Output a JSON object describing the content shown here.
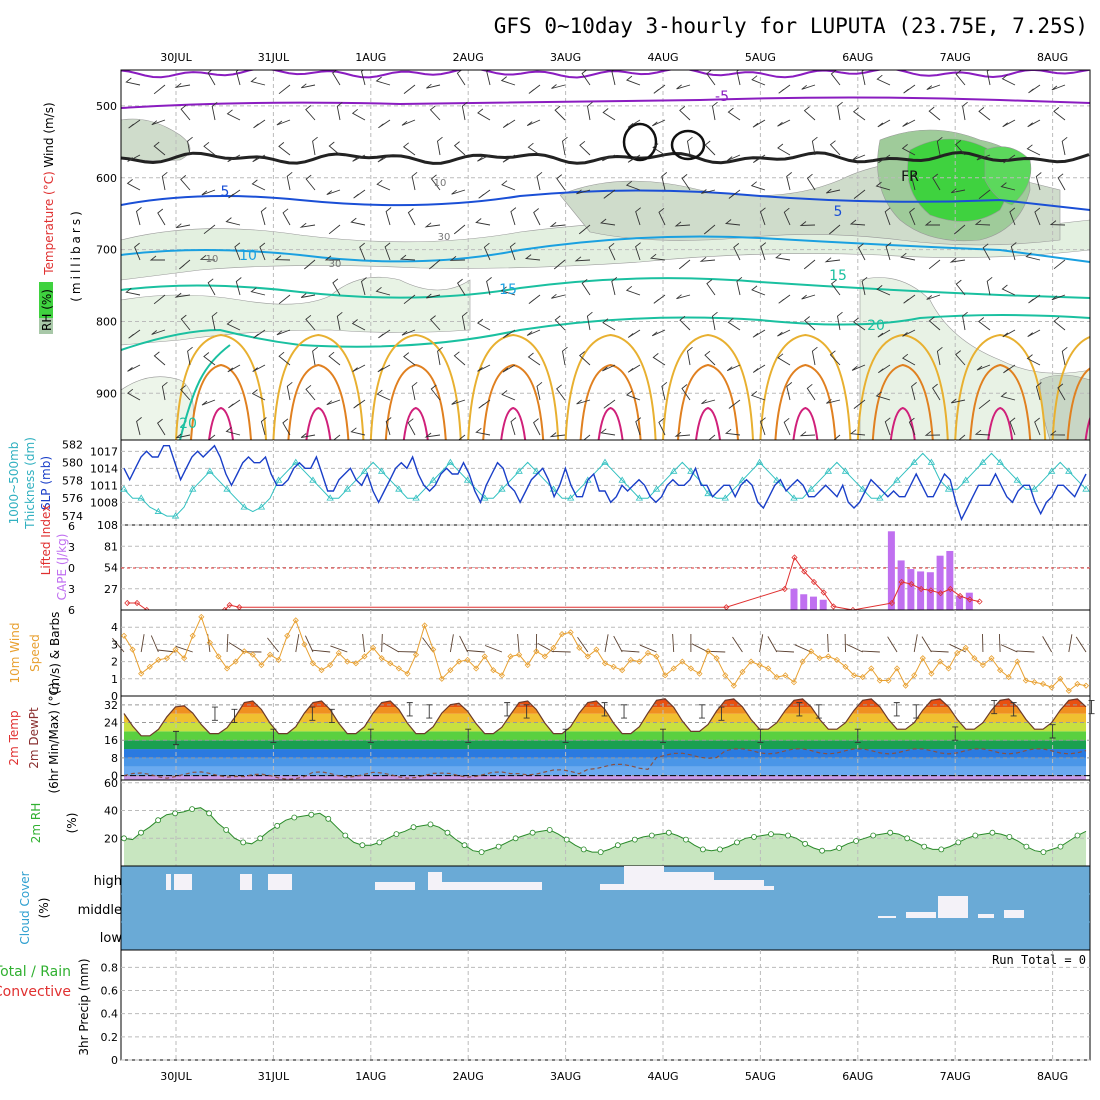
{
  "header": {
    "title": "GFS 0~10day 3-hourly for LUPUTA (23.75E, 7.25S)"
  },
  "dates": [
    "30JUL",
    "31JUL",
    "1AUG",
    "2AUG",
    "3AUG",
    "4AUG",
    "5AUG",
    "6AUG",
    "7AUG",
    "8AUG"
  ],
  "colors": {
    "rh_green": "#3fd23f",
    "temp_purple": "#8a1cc0",
    "temp_blue": "#1a4fd6",
    "temp_cyan": "#1aa0e0",
    "temp_teal": "#1ac0a0",
    "slp_line": "#1a3fc8",
    "thickness_line": "#30c0c0",
    "cape_bar": "#c070f0",
    "lifted_index": "#e03030",
    "wind10m": "#e8a030",
    "cloud_blue": "#6aaad6",
    "rh2m_green": "#40b040"
  },
  "panels": {
    "upper_air": {
      "labels": {
        "wind": "Wind (m/s)",
        "temperature": "Temperature (°C)",
        "rh": "RH (%)",
        "pressure": "(millibars)"
      },
      "contour_labels": [
        "-5",
        "5",
        "5",
        "10",
        "15",
        "15",
        "20",
        "20",
        "FR",
        "10",
        "10",
        "30",
        "30"
      ]
    },
    "slp": {
      "label_a": "1000~500mb",
      "label_b": "Thickness (dm)",
      "label_c": "SLP (mb)"
    },
    "cape": {
      "label_a": "Lifted Index",
      "label_b": "CAPE (J/kg)"
    },
    "wind10": {
      "label_a": "10m Wind",
      "label_b": "Speed",
      "label_c": "(m/s) & Barbs"
    },
    "temp2m": {
      "label_a": "2m Temp",
      "label_b": "2m DewPt",
      "label_c": "(6hr Min/Max) (°C)"
    },
    "rh2m": {
      "label_a": "2m RH",
      "label_b": "(%)"
    },
    "cloud": {
      "label_a": "Cloud Cover",
      "label_b": "(%)",
      "levels": [
        "high",
        "middle",
        "low"
      ]
    },
    "precip": {
      "label_a": "Total / Rain",
      "label_b": "Convective",
      "label_c": "3hr Precip (mm)",
      "run_total": "Run Total = 0"
    }
  },
  "chart_data": [
    {
      "type": "heatmap",
      "name": "upper-air cross section",
      "ylim": [
        965,
        450
      ],
      "yticks": [
        500,
        600,
        700,
        800,
        900
      ],
      "isotherms_c": [
        -5,
        0,
        5,
        10,
        15,
        20,
        25,
        30
      ],
      "rh_shading_pct": [
        30,
        50,
        70,
        90
      ]
    },
    {
      "type": "line",
      "name": "SLP and thickness",
      "ylim_slp": [
        1004,
        1019
      ],
      "yticks_slp": [
        1008,
        1011,
        1014,
        1017
      ],
      "ylim_thk": [
        573,
        582.5
      ],
      "yticks_thk": [
        574,
        576,
        578,
        580,
        582
      ],
      "slp": [
        1014,
        1012,
        1014,
        1016,
        1017,
        1016,
        1016,
        1018,
        1018,
        1015,
        1012,
        1014,
        1016,
        1017,
        1016,
        1017,
        1018,
        1016,
        1013,
        1011,
        1013,
        1015,
        1016,
        1015,
        1015,
        1016,
        1013,
        1011,
        1011,
        1012,
        1014,
        1015,
        1014,
        1014,
        1016,
        1013,
        1010,
        1010,
        1012,
        1013,
        1014,
        1012,
        1011,
        1013,
        1010,
        1008,
        1010,
        1012,
        1014,
        1015,
        1014,
        1016,
        1013,
        1011,
        1010,
        1011,
        1013,
        1014,
        1013,
        1013,
        1015,
        1013,
        1010,
        1008,
        1011,
        1013,
        1015,
        1014,
        1011,
        1010,
        1008,
        1010,
        1012,
        1013,
        1014,
        1012,
        1009,
        1011,
        1014,
        1011,
        1009,
        1009,
        1012,
        1013,
        1010,
        1010,
        1008,
        1009,
        1011,
        1010,
        1011,
        1012,
        1011,
        1009,
        1008,
        1009,
        1011,
        1012,
        1011,
        1011,
        1012,
        1014,
        1011,
        1011,
        1009,
        1010,
        1011,
        1011,
        1009,
        1011,
        1012,
        1011,
        1008,
        1007,
        1009,
        1011,
        1012,
        1010,
        1011,
        1012,
        1011,
        1009,
        1009,
        1010,
        1011,
        1010,
        1009,
        1011,
        1008,
        1007,
        1008,
        1010,
        1012,
        1011,
        1010,
        1009,
        1010,
        1009,
        1009,
        1011,
        1013,
        1011,
        1009,
        1009,
        1011,
        1013,
        1012,
        1008,
        1005,
        1007,
        1009,
        1011,
        1011,
        1011,
        1013,
        1011,
        1009,
        1008,
        1010,
        1011,
        1011,
        1008,
        1006,
        1008,
        1009,
        1011,
        1011,
        1010,
        1009,
        1011,
        1013
      ],
      "thickness": [
        577,
        576,
        576,
        575,
        574.5,
        574,
        574,
        575,
        577,
        578,
        579,
        578,
        577,
        576,
        575,
        574.5,
        575,
        576,
        578,
        579,
        580,
        579,
        578,
        577,
        576,
        576,
        577,
        578,
        579,
        580,
        579,
        578,
        577,
        576,
        576,
        577,
        578,
        579,
        580,
        579,
        578,
        577,
        576,
        576,
        577,
        578,
        579,
        580,
        579,
        578,
        577,
        576,
        576,
        577,
        578,
        579,
        580,
        579,
        578,
        577,
        576,
        576,
        577,
        578,
        579,
        580,
        579,
        578,
        576.5,
        576,
        576,
        577,
        578,
        579,
        580,
        579,
        578,
        577,
        576,
        576,
        577,
        578,
        579,
        580,
        579,
        578,
        577,
        576,
        576,
        577,
        578,
        579,
        580,
        581,
        580,
        578,
        577,
        577,
        578,
        579,
        580,
        581,
        580,
        579,
        578,
        577,
        577,
        578,
        579,
        580,
        579,
        578,
        577
      ]
    },
    {
      "type": "bar",
      "name": "CAPE and lifted index",
      "ylim_cape": [
        0,
        108
      ],
      "yticks_cape": [
        27,
        54,
        81,
        108
      ],
      "yticks_li": [
        -6,
        -3,
        0,
        3,
        6
      ],
      "cape_bars": [
        {
          "t": 6.35,
          "v": 27
        },
        {
          "t": 6.45,
          "v": 20
        },
        {
          "t": 6.55,
          "v": 17
        },
        {
          "t": 6.65,
          "v": 13
        },
        {
          "t": 7.35,
          "v": 100
        },
        {
          "t": 7.45,
          "v": 63
        },
        {
          "t": 7.55,
          "v": 52
        },
        {
          "t": 7.65,
          "v": 49
        },
        {
          "t": 7.75,
          "v": 48
        },
        {
          "t": 7.85,
          "v": 69
        },
        {
          "t": 7.95,
          "v": 75
        },
        {
          "t": 8.05,
          "v": 18
        },
        {
          "t": 8.15,
          "v": 22
        }
      ],
      "lifted_index": [
        {
          "t": -0.5,
          "v": 5
        },
        {
          "t": -0.4,
          "v": 5
        },
        {
          "t": -0.3,
          "v": 6
        },
        {
          "t": 0.5,
          "v": 6
        },
        {
          "t": 0.55,
          "v": 5.3
        },
        {
          "t": 0.65,
          "v": 5.6
        },
        {
          "t": 5.65,
          "v": 5.6
        },
        {
          "t": 6.25,
          "v": 3
        },
        {
          "t": 6.35,
          "v": -1.5
        },
        {
          "t": 6.45,
          "v": 0.5
        },
        {
          "t": 6.55,
          "v": 2
        },
        {
          "t": 6.65,
          "v": 3.5
        },
        {
          "t": 6.75,
          "v": 5.5
        },
        {
          "t": 6.95,
          "v": 6
        },
        {
          "t": 7.35,
          "v": 5
        },
        {
          "t": 7.45,
          "v": 2
        },
        {
          "t": 7.55,
          "v": 2.3
        },
        {
          "t": 7.65,
          "v": 3
        },
        {
          "t": 7.75,
          "v": 3.2
        },
        {
          "t": 7.85,
          "v": 3.6
        },
        {
          "t": 7.95,
          "v": 3
        },
        {
          "t": 8.05,
          "v": 4
        },
        {
          "t": 8.15,
          "v": 4.5
        },
        {
          "t": 8.25,
          "v": 4.8
        }
      ]
    },
    {
      "type": "line",
      "name": "10m wind speed",
      "ylim": [
        0,
        5
      ],
      "yticks": [
        0,
        1,
        2,
        3,
        4
      ],
      "speed": [
        3.5,
        2.7,
        1.3,
        1.7,
        2.1,
        2.2,
        2.7,
        2.2,
        3.5,
        4.6,
        3.1,
        2.3,
        1.6,
        2.0,
        2.6,
        2.4,
        1.8,
        2.4,
        2.1,
        3.5,
        4.4,
        3.0,
        1.9,
        1.5,
        1.8,
        2.5,
        2.0,
        1.9,
        2.3,
        2.8,
        2.2,
        1.9,
        1.6,
        1.3,
        2.4,
        4.1,
        2.7,
        1.0,
        1.5,
        2.0,
        2.1,
        1.6,
        2.3,
        1.5,
        1.2,
        2.3,
        2.4,
        1.8,
        2.6,
        2.3,
        2.8,
        3.6,
        3.7,
        2.8,
        2.3,
        2.7,
        1.9,
        1.7,
        1.5,
        2.1,
        2.0,
        2.5,
        2.3,
        1.2,
        1.6,
        2.0,
        1.6,
        1.3,
        2.6,
        2.2,
        1.2,
        0.6,
        1.4,
        2.0,
        1.8,
        1.6,
        1.1,
        1.2,
        0.8,
        2.0,
        2.6,
        2.2,
        2.3,
        2.1,
        1.7,
        1.2,
        1.1,
        1.6,
        0.9,
        0.9,
        1.6,
        0.6,
        1.2,
        2.2,
        1.3,
        2.0,
        1.6,
        2.5,
        2.8,
        2.2,
        1.8,
        2.2,
        1.5,
        1.1,
        2.0,
        0.9,
        0.8,
        0.7,
        0.5,
        1.0,
        0.3,
        0.7,
        0.6
      ]
    },
    {
      "type": "area",
      "name": "2m temperature and dewpoint",
      "ylim": [
        -2,
        36
      ],
      "yticks": [
        0,
        8,
        16,
        24,
        32
      ],
      "days": [
        0,
        1,
        2,
        3,
        4,
        5,
        6,
        7,
        8,
        9
      ],
      "tmax": [
        31,
        31,
        33,
        33,
        33,
        32,
        33,
        33,
        34,
        34
      ],
      "tmin": [
        18,
        19,
        19,
        19,
        19,
        19,
        19,
        19,
        20,
        21
      ],
      "dewpoint": [
        0,
        0.5,
        -0.5,
        0.5,
        0,
        0.5,
        1.5,
        4,
        9,
        11
      ]
    },
    {
      "type": "area",
      "name": "2m relative humidity",
      "ylim": [
        0,
        62
      ],
      "yticks": [
        20,
        40,
        60
      ],
      "rh": [
        20,
        19,
        24,
        28,
        33,
        37,
        38,
        39,
        41,
        42,
        38,
        31,
        26,
        20,
        17,
        16,
        20,
        25,
        29,
        33,
        35,
        36,
        37,
        38,
        34,
        28,
        22,
        17,
        15,
        15,
        17,
        20,
        23,
        25,
        28,
        29,
        30,
        28,
        24,
        19,
        15,
        11,
        10,
        12,
        14,
        17,
        20,
        22,
        24,
        25,
        26,
        23,
        19,
        15,
        12,
        10,
        10,
        12,
        15,
        17,
        19,
        21,
        22,
        23,
        24,
        22,
        19,
        15,
        12,
        11,
        12,
        14,
        17,
        20,
        21,
        22,
        23,
        23,
        22,
        20,
        16,
        13,
        11,
        11,
        13,
        16,
        18,
        20,
        22,
        23,
        24,
        23,
        20,
        17,
        14,
        12,
        12,
        14,
        17,
        20,
        22,
        23,
        24,
        23,
        21,
        18,
        14,
        11,
        10,
        12,
        14,
        18,
        22,
        25
      ]
    },
    {
      "type": "bar",
      "name": "cloud cover",
      "categories": [
        "high",
        "middle",
        "low"
      ]
    },
    {
      "type": "bar",
      "name": "3hr precipitation",
      "ylim": [
        0,
        0.95
      ],
      "yticks": [
        0,
        0.2,
        0.4,
        0.6,
        0.8
      ],
      "values": []
    }
  ]
}
